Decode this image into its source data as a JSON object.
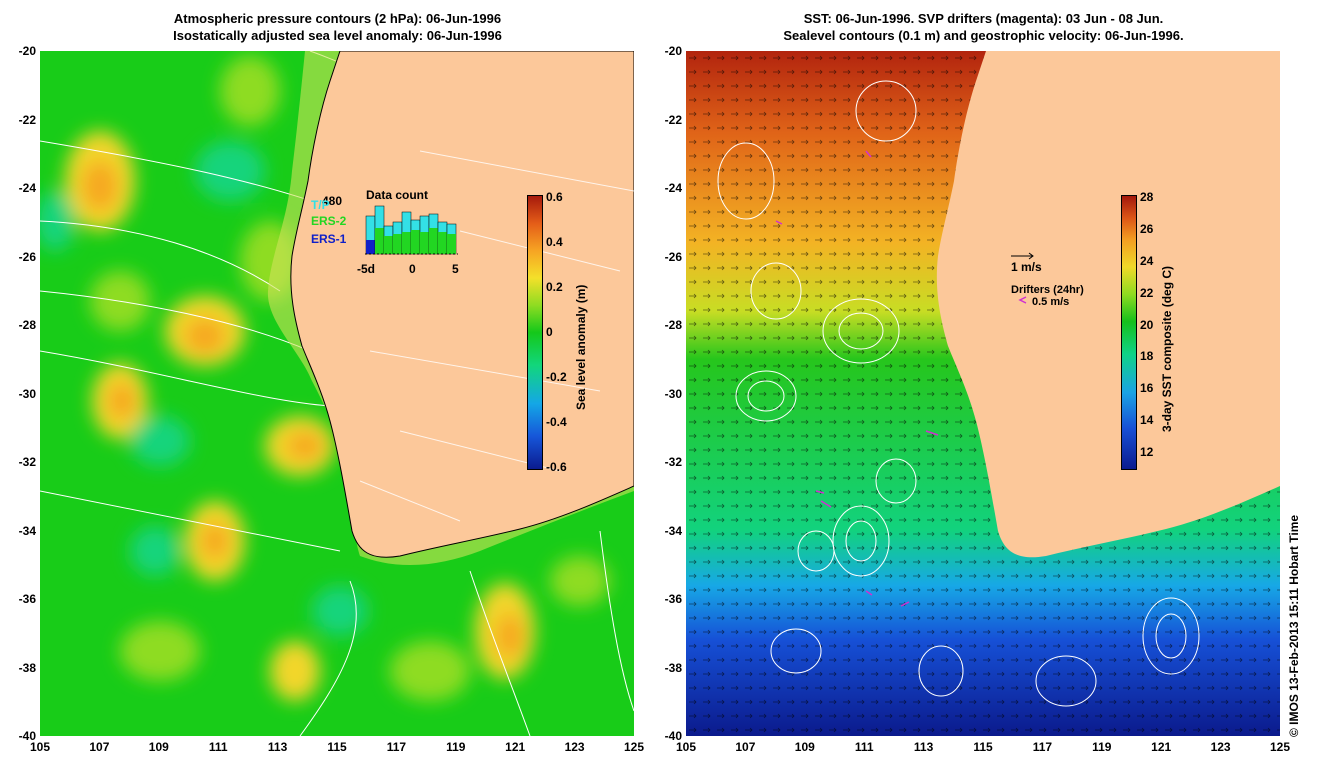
{
  "left_panel": {
    "title_line1": "Atmospheric pressure contours (2 hPa): 06-Jun-1996",
    "title_line2": "Isostatically adjusted sea level anomaly: 06-Jun-1996",
    "colorbar_label": "Sea level anomaly (m)",
    "colorbar_ticks": [
      "0.6",
      "0.4",
      "0.2",
      "0",
      "-0.2",
      "-0.4",
      "-0.6"
    ],
    "inset": {
      "title": "Data count",
      "max_count": "480",
      "satellites": [
        "T/P",
        "ERS-2",
        "ERS-1"
      ],
      "satellite_colors": [
        "#33e0e6",
        "#22d622",
        "#1020c8"
      ],
      "axis_ticks": [
        "-5d",
        "0",
        "5"
      ]
    }
  },
  "right_panel": {
    "title_line1": "SST: 06-Jun-1996. SVP drifters (magenta): 03 Jun - 08 Jun.",
    "title_line2": "Sealevel contours (0.1 m) and geostrophic velocity: 06-Jun-1996.",
    "colorbar_label": "3-day SST composite (deg C)",
    "colorbar_ticks": [
      "28",
      "26",
      "24",
      "22",
      "20",
      "18",
      "16",
      "14",
      "12"
    ],
    "velocity_scale": "1 m/s",
    "drifters_label": "Drifters (24hr)",
    "drifter_scale": "0.5 m/s",
    "drifter_color": "#d030d0"
  },
  "axes": {
    "y_ticks": [
      "-20",
      "-22",
      "-24",
      "-26",
      "-28",
      "-30",
      "-32",
      "-34",
      "-36",
      "-38",
      "-40"
    ],
    "x_ticks": [
      "105",
      "107",
      "109",
      "111",
      "113",
      "115",
      "117",
      "119",
      "121",
      "123",
      "125"
    ]
  },
  "credit": "© IMOS 13-Feb-2013 15:11 Hobart Time",
  "colors": {
    "land": "#fcc89a",
    "ocean_base": "#18cc18",
    "contour": "#ffffff"
  }
}
